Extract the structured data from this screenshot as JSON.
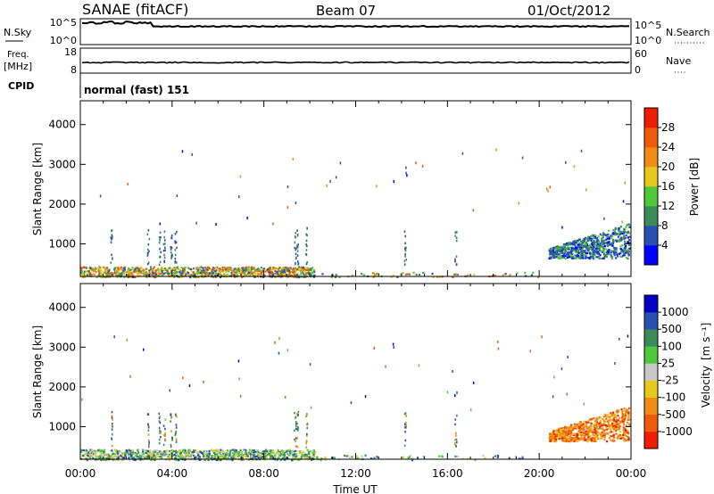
{
  "header": {
    "station": "SANAE (fitACF)",
    "beam": "Beam 07",
    "date": "01/Oct/2012"
  },
  "top_panels": {
    "nsky": {
      "left_label": "N.Sky",
      "left_ticks": [
        "10^5",
        "10^0"
      ],
      "right_label": "N.Search",
      "right_ticks": [
        "10^5",
        "10^0"
      ]
    },
    "freq": {
      "left_label": "Freq.",
      "left_unit": "[MHz]",
      "left_ticks": [
        "18",
        "8"
      ],
      "right_label": "Nave",
      "right_ticks": [
        "60",
        "0"
      ]
    },
    "cpid": {
      "label": "CPID",
      "value": "normal (fast) 151"
    }
  },
  "colors": {
    "power": [
      "#0000ff",
      "#2850b4",
      "#3c8c5a",
      "#50c83c",
      "#e6c81e",
      "#f08c14",
      "#f05a0a",
      "#f01e00"
    ],
    "velocity": [
      "#f01e00",
      "#f05a0a",
      "#f08c14",
      "#e6c81e",
      "#c8c8c8",
      "#50c83c",
      "#3c8c5a",
      "#2850b4",
      "#0000c8"
    ]
  },
  "chart_data": [
    {
      "type": "heatmap",
      "name": "power-panel",
      "ylabel": "Slant Range [km]",
      "xlabel": "Time UT",
      "x_ticks": [
        "00:00",
        "04:00",
        "08:00",
        "12:00",
        "16:00",
        "20:00",
        "00:00"
      ],
      "x_range_hours": [
        0,
        24
      ],
      "y_ticks": [
        1000,
        2000,
        3000,
        4000
      ],
      "ylim": [
        180,
        4600
      ],
      "colorbar": {
        "label": "Power",
        "unit": "[dB]",
        "ticks": [
          "4",
          "8",
          "12",
          "16",
          "20",
          "24",
          "28"
        ],
        "range": [
          0,
          32
        ]
      }
    },
    {
      "type": "heatmap",
      "name": "velocity-panel",
      "ylabel": "Slant Range [km]",
      "xlabel": "Time UT",
      "x_ticks": [
        "00:00",
        "04:00",
        "08:00",
        "12:00",
        "16:00",
        "20:00",
        "00:00"
      ],
      "x_range_hours": [
        0,
        24
      ],
      "y_ticks": [
        1000,
        2000,
        3000,
        4000
      ],
      "ylim": [
        180,
        4600
      ],
      "colorbar": {
        "label": "Velocity",
        "unit": "[m s⁻¹]",
        "ticks": [
          "-1000",
          "-500",
          "-100",
          "-25",
          "25",
          "100",
          "500",
          "1000"
        ]
      }
    }
  ]
}
